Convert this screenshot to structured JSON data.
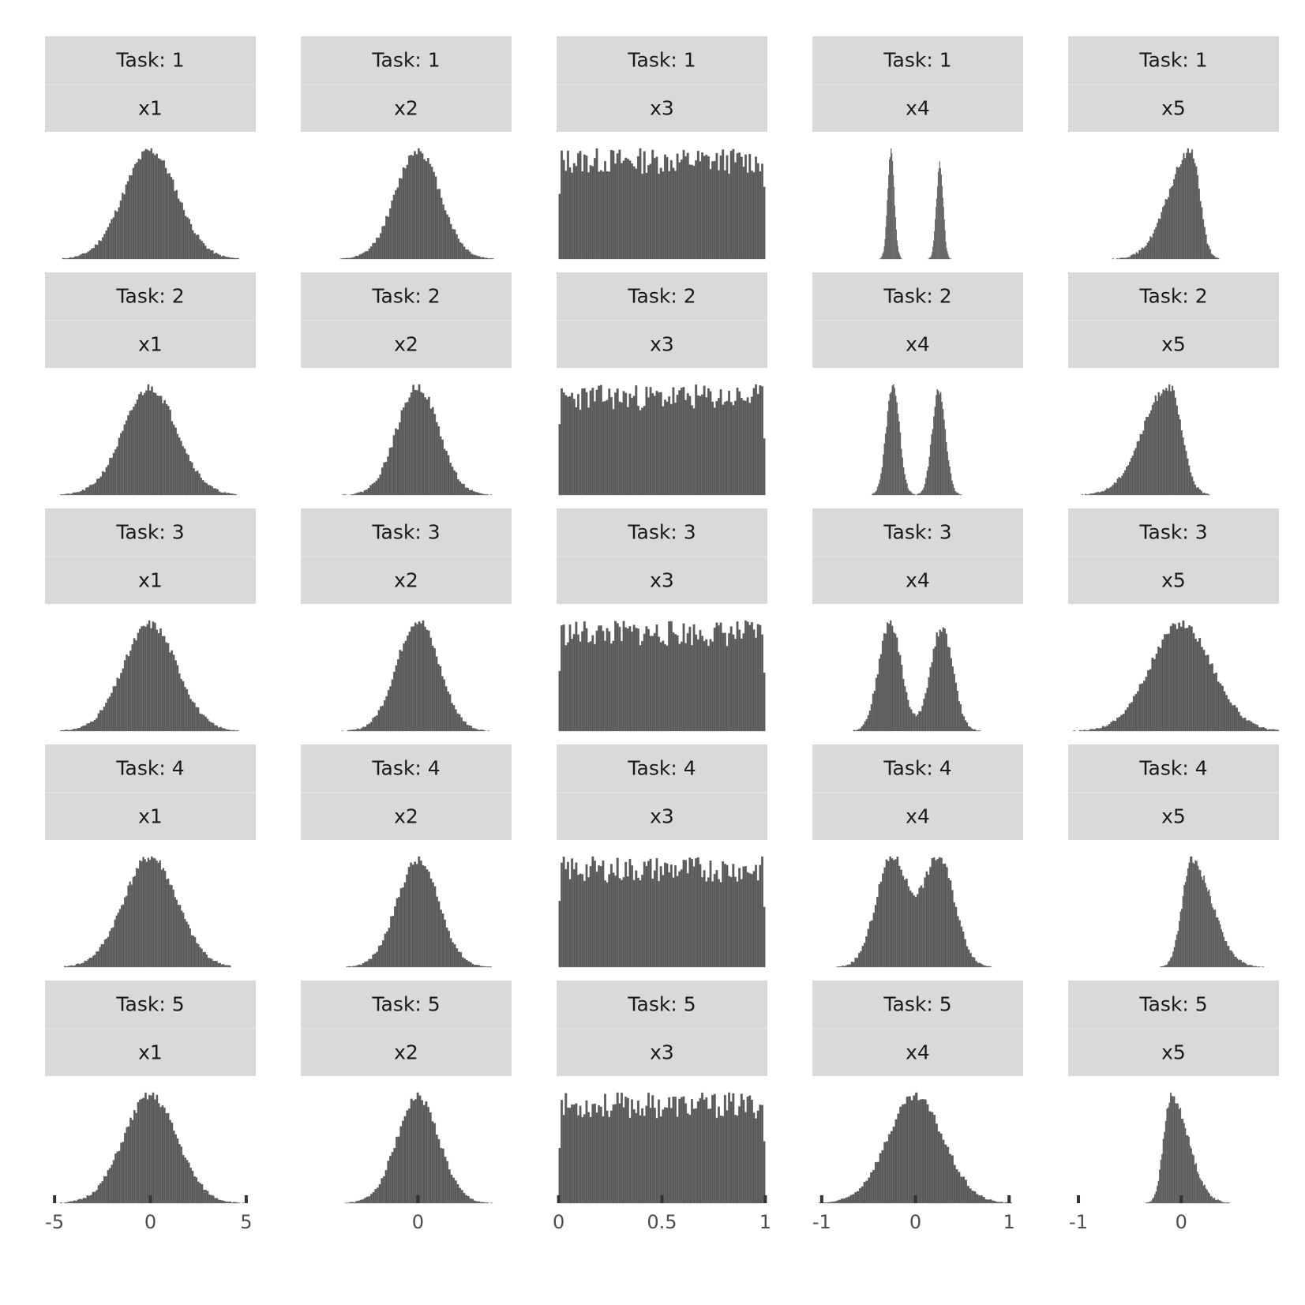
{
  "chart_data": {
    "type": "bar",
    "layout": "facet-grid",
    "rows": [
      "1",
      "2",
      "3",
      "4",
      "5"
    ],
    "cols": [
      "x1",
      "x2",
      "x3",
      "x4",
      "x5"
    ],
    "row_strip_prefix": "Task: ",
    "strip_fill": "#d9d9d9",
    "bar_fill": "#595959",
    "grid": false,
    "x_axes": [
      {
        "xlim": [
          -5.5,
          5.5
        ],
        "ticks": [
          -5,
          0,
          5
        ],
        "tick_labels": [
          "-5",
          "0",
          "5"
        ]
      },
      {
        "xlim": [
          -5,
          4
        ],
        "ticks": [
          0
        ],
        "tick_labels": [
          "0"
        ]
      },
      {
        "xlim": [
          -0.01,
          1.01
        ],
        "ticks": [
          0,
          0.5,
          1
        ],
        "tick_labels": [
          "0",
          "0.5",
          "1"
        ]
      },
      {
        "xlim": [
          -1.1,
          1.15
        ],
        "ticks": [
          -1,
          0,
          1
        ],
        "tick_labels": [
          "-1",
          "0",
          "1"
        ]
      },
      {
        "xlim": [
          -1.1,
          0.95
        ],
        "ticks": [
          -1,
          0
        ],
        "tick_labels": [
          "-1",
          "0"
        ]
      }
    ],
    "panels": [
      [
        {
          "kind": "normal",
          "mu": 0,
          "sd": 1.4,
          "lo": -4.6,
          "hi": 4.8,
          "seed": 11
        },
        {
          "kind": "normal",
          "mu": 0,
          "sd": 0.95,
          "lo": -4.3,
          "hi": 3.8,
          "seed": 12
        },
        {
          "kind": "uniform",
          "lo": 0,
          "hi": 1,
          "seed": 13
        },
        {
          "kind": "mixture",
          "comps": [
            [
              -0.26,
              0.035,
              1
            ],
            [
              0.26,
              0.035,
              0.88
            ]
          ],
          "lo": -0.4,
          "hi": 0.4,
          "seed": 14
        },
        {
          "kind": "skewleft",
          "mode": 0.1,
          "sdl": 0.22,
          "sdr": 0.08,
          "lo": -0.9,
          "hi": 0.45,
          "seed": 15
        }
      ],
      [
        {
          "kind": "normal",
          "mu": 0,
          "sd": 1.4,
          "lo": -5.0,
          "hi": 4.5,
          "seed": 21
        },
        {
          "kind": "normal",
          "mu": 0,
          "sd": 0.9,
          "lo": -4.3,
          "hi": 4.0,
          "seed": 22
        },
        {
          "kind": "uniform",
          "lo": 0,
          "hi": 1,
          "seed": 23
        },
        {
          "kind": "mixture",
          "comps": [
            [
              -0.24,
              0.07,
              1
            ],
            [
              0.25,
              0.07,
              0.95
            ]
          ],
          "lo": -0.6,
          "hi": 0.6,
          "seed": 24
        },
        {
          "kind": "skewleft",
          "mode": -0.12,
          "sdl": 0.25,
          "sdr": 0.12,
          "lo": -1.1,
          "hi": 0.38,
          "seed": 25
        }
      ],
      [
        {
          "kind": "normal",
          "mu": 0,
          "sd": 1.4,
          "lo": -5.2,
          "hi": 4.6,
          "seed": 31
        },
        {
          "kind": "normal",
          "mu": 0,
          "sd": 0.9,
          "lo": -4.0,
          "hi": 4.2,
          "seed": 32
        },
        {
          "kind": "uniform",
          "lo": 0,
          "hi": 1,
          "seed": 33
        },
        {
          "kind": "mixture",
          "comps": [
            [
              -0.27,
              0.12,
              1
            ],
            [
              0.28,
              0.12,
              0.95
            ]
          ],
          "lo": -0.8,
          "hi": 0.9,
          "seed": 34
        },
        {
          "kind": "normal",
          "mu": 0,
          "sd": 0.3,
          "lo": -1.05,
          "hi": 0.95,
          "seed": 35
        }
      ],
      [
        {
          "kind": "normal",
          "mu": 0,
          "sd": 1.4,
          "lo": -4.5,
          "hi": 4.2,
          "seed": 41
        },
        {
          "kind": "normal",
          "mu": 0,
          "sd": 0.9,
          "lo": -4.5,
          "hi": 4.0,
          "seed": 42
        },
        {
          "kind": "uniform",
          "lo": 0,
          "hi": 1,
          "seed": 43
        },
        {
          "kind": "mixture",
          "comps": [
            [
              -0.25,
              0.17,
              1
            ],
            [
              0.25,
              0.17,
              1
            ]
          ],
          "lo": -1.0,
          "hi": 0.95,
          "seed": 44
        },
        {
          "kind": "skewright",
          "mode": 0.1,
          "sdl": 0.09,
          "sdr": 0.2,
          "lo": -0.3,
          "hi": 0.9,
          "seed": 45
        }
      ],
      [
        {
          "kind": "normal",
          "mu": 0,
          "sd": 1.4,
          "lo": -4.9,
          "hi": 4.9,
          "seed": 51
        },
        {
          "kind": "normal",
          "mu": 0,
          "sd": 0.9,
          "lo": -5.0,
          "hi": 4.0,
          "seed": 52
        },
        {
          "kind": "uniform",
          "lo": 0,
          "hi": 1,
          "seed": 53
        },
        {
          "kind": "normal",
          "mu": 0,
          "sd": 0.3,
          "lo": -1.25,
          "hi": 1.15,
          "seed": 54
        },
        {
          "kind": "skewright",
          "mode": -0.1,
          "sdl": 0.07,
          "sdr": 0.17,
          "lo": -0.38,
          "hi": 0.8,
          "seed": 55
        }
      ]
    ],
    "bins": 100
  }
}
